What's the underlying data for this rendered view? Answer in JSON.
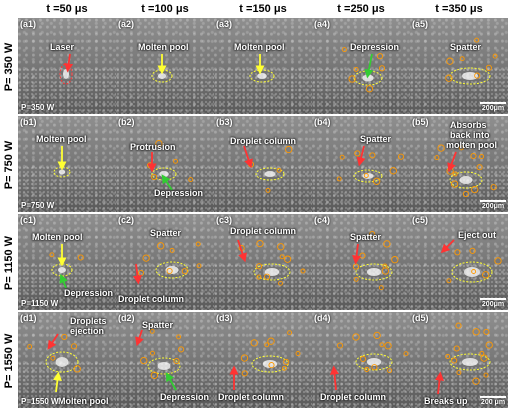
{
  "columns": [
    "t =50 μs",
    "t =100 μs",
    "t =150 μs",
    "t =250 μs",
    "t =350 μs"
  ],
  "rows": [
    "P= 350 W",
    "P= 750 W",
    "P= 1150 W",
    "P= 1550 W"
  ],
  "panels": [
    {
      "label": "(a1)",
      "annotations": [
        {
          "text": "Laser",
          "color": "#ff3333"
        }
      ],
      "power": "P=350 W",
      "scale": ""
    },
    {
      "label": "(a2)",
      "annotations": [
        {
          "text": "Molten pool",
          "color": "#ffff33"
        }
      ],
      "power": "",
      "scale": ""
    },
    {
      "label": "(a3)",
      "annotations": [
        {
          "text": "Molten pool",
          "color": "#ffff33"
        }
      ],
      "power": "",
      "scale": ""
    },
    {
      "label": "(a4)",
      "annotations": [
        {
          "text": "Depression",
          "color": "#33cc33"
        }
      ],
      "power": "",
      "scale": ""
    },
    {
      "label": "(a5)",
      "annotations": [
        {
          "text": "Spatter",
          "color": "#ff9900"
        }
      ],
      "power": "",
      "scale": "200μm"
    },
    {
      "label": "(b1)",
      "annotations": [
        {
          "text": "Molten pool",
          "color": "#ffff33"
        }
      ],
      "power": "P=750 W",
      "scale": ""
    },
    {
      "label": "(b2)",
      "annotations": [
        {
          "text": "Protrusion",
          "color": "#ff3333"
        },
        {
          "text": "Depression",
          "color": "#33cc33"
        }
      ],
      "power": "",
      "scale": ""
    },
    {
      "label": "(b3)",
      "annotations": [
        {
          "text": "Droplet column",
          "color": "#ff3333"
        }
      ],
      "power": "",
      "scale": ""
    },
    {
      "label": "(b4)",
      "annotations": [
        {
          "text": "Spatter",
          "color": "#ff9900"
        }
      ],
      "power": "",
      "scale": ""
    },
    {
      "label": "(b5)",
      "annotations": [
        {
          "text": "Absorbs",
          "color": "#ff3333"
        },
        {
          "text": "back into",
          "color": "#ff3333"
        },
        {
          "text": "molten pool",
          "color": "#ff3333"
        }
      ],
      "power": "",
      "scale": "200μm"
    },
    {
      "label": "(c1)",
      "annotations": [
        {
          "text": "Molten pool",
          "color": "#ffff33"
        },
        {
          "text": "Depression",
          "color": "#33cc33"
        }
      ],
      "power": "P=1150 W",
      "scale": ""
    },
    {
      "label": "(c2)",
      "annotations": [
        {
          "text": "Spatter",
          "color": "#ff9900"
        },
        {
          "text": "Droplet column",
          "color": "#ff3333"
        }
      ],
      "power": "",
      "scale": ""
    },
    {
      "label": "(c3)",
      "annotations": [
        {
          "text": "Droplet column",
          "color": "#ff3333"
        }
      ],
      "power": "",
      "scale": ""
    },
    {
      "label": "(c4)",
      "annotations": [
        {
          "text": "Spatter",
          "color": "#ff9900"
        }
      ],
      "power": "",
      "scale": ""
    },
    {
      "label": "(c5)",
      "annotations": [
        {
          "text": "Eject out",
          "color": "#ff3333"
        }
      ],
      "power": "",
      "scale": "200μm"
    },
    {
      "label": "(d1)",
      "annotations": [
        {
          "text": "Droplets",
          "color": "#ff3333"
        },
        {
          "text": "ejection",
          "color": "#ff3333"
        },
        {
          "text": "Molten pool",
          "color": "#ffff33"
        }
      ],
      "power": "P=1550 W",
      "scale": ""
    },
    {
      "label": "(d2)",
      "annotations": [
        {
          "text": "Spatter",
          "color": "#ff9900"
        },
        {
          "text": "Depression",
          "color": "#33cc33"
        }
      ],
      "power": "",
      "scale": ""
    },
    {
      "label": "(d3)",
      "annotations": [
        {
          "text": "Droplet column",
          "color": "#ff3333"
        }
      ],
      "power": "",
      "scale": ""
    },
    {
      "label": "(d4)",
      "annotations": [
        {
          "text": "Droplet column",
          "color": "#ff3333"
        }
      ],
      "power": "",
      "scale": ""
    },
    {
      "label": "(d5)",
      "annotations": [
        {
          "text": "Breaks up",
          "color": "#ff3333"
        }
      ],
      "power": "",
      "scale": "200 μm"
    }
  ]
}
